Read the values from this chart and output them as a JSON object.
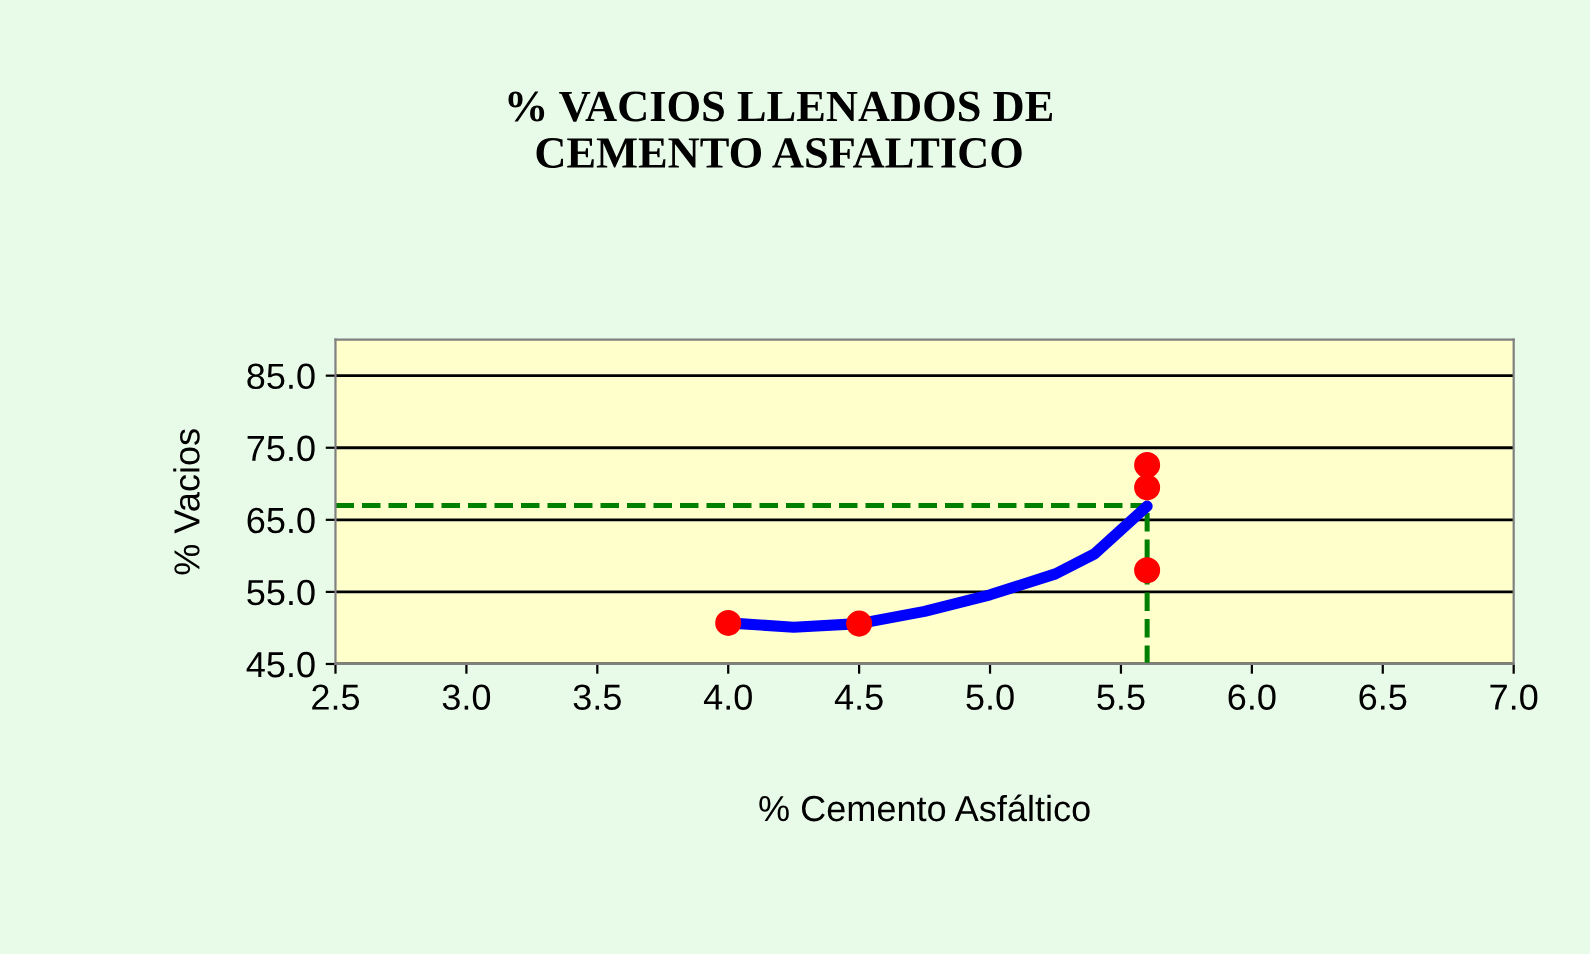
{
  "chart_data": {
    "type": "scatter",
    "title": "% VACIOS LLENADOS DE\nCEMENTO ASFALTICO",
    "xlabel": "% Cemento Asfáltico",
    "ylabel": "% Vacios",
    "xlim": [
      2.5,
      7.0
    ],
    "xticks": [
      {
        "value": 2.5,
        "label": "2.5"
      },
      {
        "value": 3.0,
        "label": "3.0"
      },
      {
        "value": 3.5,
        "label": "3.5"
      },
      {
        "value": 4.0,
        "label": "4.0"
      },
      {
        "value": 4.5,
        "label": "4.5"
      },
      {
        "value": 5.0,
        "label": "5.0"
      },
      {
        "value": 5.5,
        "label": "5.5"
      },
      {
        "value": 6.0,
        "label": "6.0"
      },
      {
        "value": 6.5,
        "label": "6.5"
      },
      {
        "value": 7.0,
        "label": "7.0"
      }
    ],
    "ylim": [
      45,
      90
    ],
    "yticks": [
      {
        "value": 45,
        "label": "45.0"
      },
      {
        "value": 55,
        "label": "55.0"
      },
      {
        "value": 65,
        "label": "65.0"
      },
      {
        "value": 75,
        "label": "75.0"
      },
      {
        "value": 85,
        "label": "85.0"
      }
    ],
    "grid": "y",
    "series": [
      {
        "type": "line",
        "color": "#0000ff",
        "marker": "none",
        "line_style": "solid",
        "x": [
          4.0,
          4.25,
          4.5,
          4.75,
          5.0,
          5.25,
          5.4,
          5.6
        ],
        "values": [
          50.7,
          50.1,
          50.6,
          52.3,
          54.6,
          57.5,
          60.3,
          66.9
        ]
      },
      {
        "color": "#ff0000",
        "marker": "circle",
        "x": [
          4.0,
          4.5,
          5.6,
          5.6,
          5.6
        ],
        "values": [
          50.7,
          50.6,
          72.6,
          69.5,
          58.0
        ]
      }
    ],
    "ref_lines": [
      {
        "axis": "x",
        "value": 5.6,
        "color": "#008000",
        "line_style": "dashed"
      },
      {
        "axis": "y",
        "value": 67.0,
        "color": "#008000",
        "line_style": "dashed"
      }
    ]
  }
}
